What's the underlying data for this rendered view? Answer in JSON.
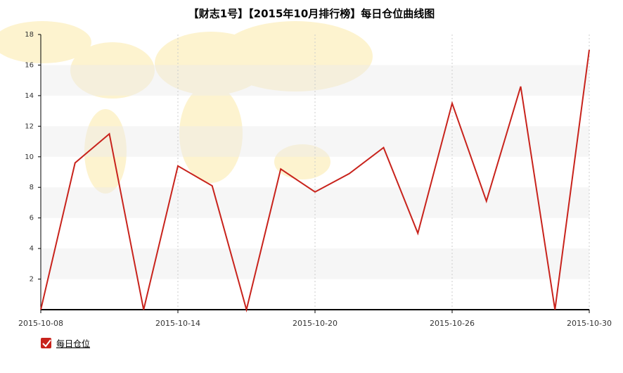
{
  "chart_data": {
    "type": "line",
    "title": "【财志1号】【2015年10月排行榜】每日仓位曲线图",
    "categories": [
      "2015-10-08",
      null,
      null,
      null,
      "2015-10-14",
      null,
      null,
      null,
      "2015-10-20",
      null,
      null,
      null,
      "2015-10-26",
      null,
      null,
      null,
      "2015-10-30"
    ],
    "series": [
      {
        "name": "每日仓位",
        "color": "#c8231c",
        "values": [
          0,
          9.6,
          11.5,
          0,
          9.4,
          8.1,
          0,
          9.2,
          7.7,
          8.9,
          10.6,
          5.0,
          13.5,
          7.1,
          14.6,
          0,
          17.0
        ]
      }
    ],
    "ylim": [
      0,
      18
    ],
    "yticks": [
      2,
      4,
      6,
      8,
      10,
      12,
      14,
      16,
      18
    ],
    "grid": true,
    "legend": "bottom-left"
  }
}
